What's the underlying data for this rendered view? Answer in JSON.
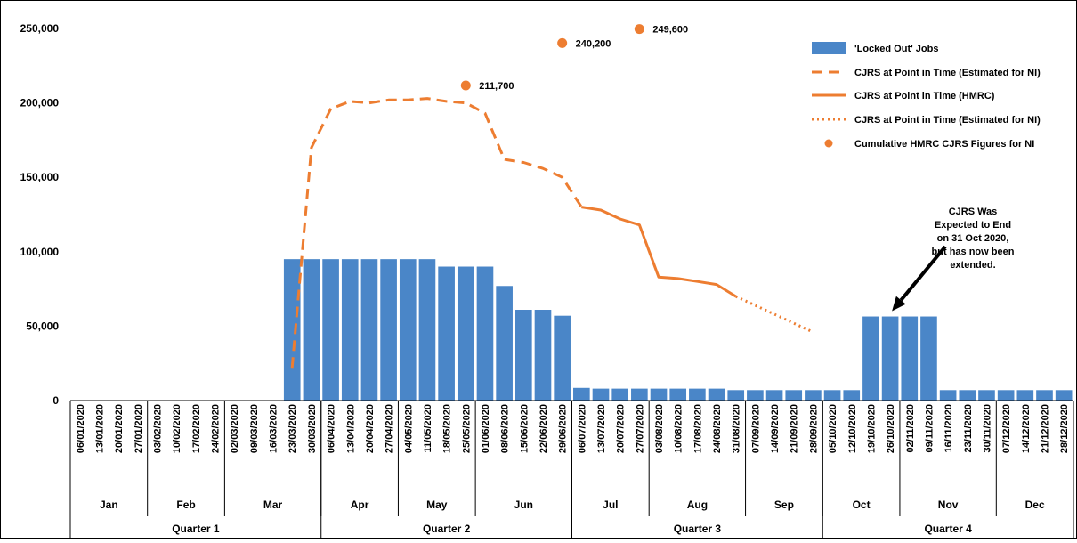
{
  "chart_data": {
    "type": "bar",
    "ylim": [
      0,
      250000
    ],
    "yticks": [
      "0",
      "50,000",
      "100,000",
      "150,000",
      "200,000",
      "250,000"
    ],
    "ytick_values": [
      0,
      50000,
      100000,
      150000,
      200000,
      250000
    ],
    "categories": [
      "06/01/2020",
      "13/01/2020",
      "20/01/2020",
      "27/01/2020",
      "03/02/2020",
      "10/02/2020",
      "17/02/2020",
      "24/02/2020",
      "02/03/2020",
      "09/03/2020",
      "16/03/2020",
      "23/03/2020",
      "30/03/2020",
      "06/04/2020",
      "13/04/2020",
      "20/04/2020",
      "27/04/2020",
      "04/05/2020",
      "11/05/2020",
      "18/05/2020",
      "25/05/2020",
      "01/06/2020",
      "08/06/2020",
      "15/06/2020",
      "22/06/2020",
      "29/06/2020",
      "06/07/2020",
      "13/07/2020",
      "20/07/2020",
      "27/07/2020",
      "03/08/2020",
      "10/08/2020",
      "17/08/2020",
      "24/08/2020",
      "31/08/2020",
      "07/09/2020",
      "14/09/2020",
      "21/09/2020",
      "28/09/2020",
      "05/10/2020",
      "12/10/2020",
      "19/10/2020",
      "26/10/2020",
      "02/11/2020",
      "09/11/2020",
      "16/11/2020",
      "23/11/2020",
      "30/11/2020",
      "07/12/2020",
      "14/12/2020",
      "21/12/2020",
      "28/12/2020"
    ],
    "months": [
      {
        "label": "Jan",
        "count": 4
      },
      {
        "label": "Feb",
        "count": 4
      },
      {
        "label": "Mar",
        "count": 5
      },
      {
        "label": "Apr",
        "count": 4
      },
      {
        "label": "May",
        "count": 4
      },
      {
        "label": "Jun",
        "count": 5
      },
      {
        "label": "Jul",
        "count": 4
      },
      {
        "label": "Aug",
        "count": 5
      },
      {
        "label": "Sep",
        "count": 4
      },
      {
        "label": "Oct",
        "count": 4
      },
      {
        "label": "Nov",
        "count": 5
      },
      {
        "label": "Dec",
        "count": 4
      }
    ],
    "quarters": [
      {
        "label": "Quarter 1",
        "count": 13
      },
      {
        "label": "Quarter 2",
        "count": 13
      },
      {
        "label": "Quarter 3",
        "count": 13
      },
      {
        "label": "Quarter 4",
        "count": 13
      }
    ],
    "series": [
      {
        "name": "'Locked Out' Jobs",
        "type": "bar",
        "color": "#4A86C8",
        "values": [
          0,
          0,
          0,
          0,
          0,
          0,
          0,
          0,
          0,
          0,
          0,
          95000,
          95000,
          95000,
          95000,
          95000,
          95000,
          95000,
          95000,
          90000,
          90000,
          90000,
          77000,
          61000,
          61000,
          57000,
          8500,
          8000,
          8000,
          8000,
          8000,
          8000,
          8000,
          8000,
          7000,
          7000,
          7000,
          7000,
          7000,
          7000,
          7000,
          56500,
          56500,
          56500,
          56500,
          7000,
          7000,
          7000,
          7000,
          7000,
          7000,
          7000
        ]
      },
      {
        "name": "CJRS at Point in Time (Estimated for NI)",
        "type": "line",
        "style": "dashed",
        "color": "#ED7D31",
        "points": [
          [
            11,
            22000
          ],
          [
            12,
            170000
          ],
          [
            13,
            196000
          ],
          [
            14,
            201000
          ],
          [
            15,
            200000
          ],
          [
            16,
            202000
          ],
          [
            17,
            202000
          ],
          [
            18,
            203000
          ],
          [
            19,
            201000
          ],
          [
            20,
            200000
          ],
          [
            21,
            193000
          ],
          [
            22,
            162000
          ],
          [
            23,
            160000
          ],
          [
            24,
            156000
          ],
          [
            25,
            150000
          ],
          [
            26,
            130000
          ]
        ]
      },
      {
        "name": "CJRS at Point in Time (HMRC)",
        "type": "line",
        "style": "solid",
        "color": "#ED7D31",
        "points": [
          [
            26,
            130000
          ],
          [
            27,
            128000
          ],
          [
            28,
            122000
          ],
          [
            29,
            118000
          ],
          [
            30,
            83000
          ],
          [
            31,
            82000
          ],
          [
            32,
            80000
          ],
          [
            33,
            78000
          ],
          [
            34,
            70000
          ]
        ]
      },
      {
        "name": "CJRS at Point in Time (Estimated for NI)",
        "type": "line",
        "style": "dotted",
        "color": "#ED7D31",
        "points": [
          [
            34,
            70000
          ],
          [
            35,
            64000
          ],
          [
            36,
            58000
          ],
          [
            37,
            52000
          ],
          [
            38,
            46000
          ]
        ]
      },
      {
        "name": "Cumulative HMRC CJRS Figures for NI",
        "type": "scatter",
        "color": "#ED7D31",
        "points": [
          {
            "x": 20,
            "y": 211700,
            "label": "211,700"
          },
          {
            "x": 25,
            "y": 240200,
            "label": "240,200"
          },
          {
            "x": 29,
            "y": 249600,
            "label": "249,600"
          }
        ]
      }
    ],
    "legend_position": "top-right",
    "annotation": {
      "lines": [
        "CJRS Was",
        "Expected to End",
        "on 31 Oct 2020,",
        "but has now been",
        "extended."
      ],
      "arrow_target_index": 42
    }
  }
}
